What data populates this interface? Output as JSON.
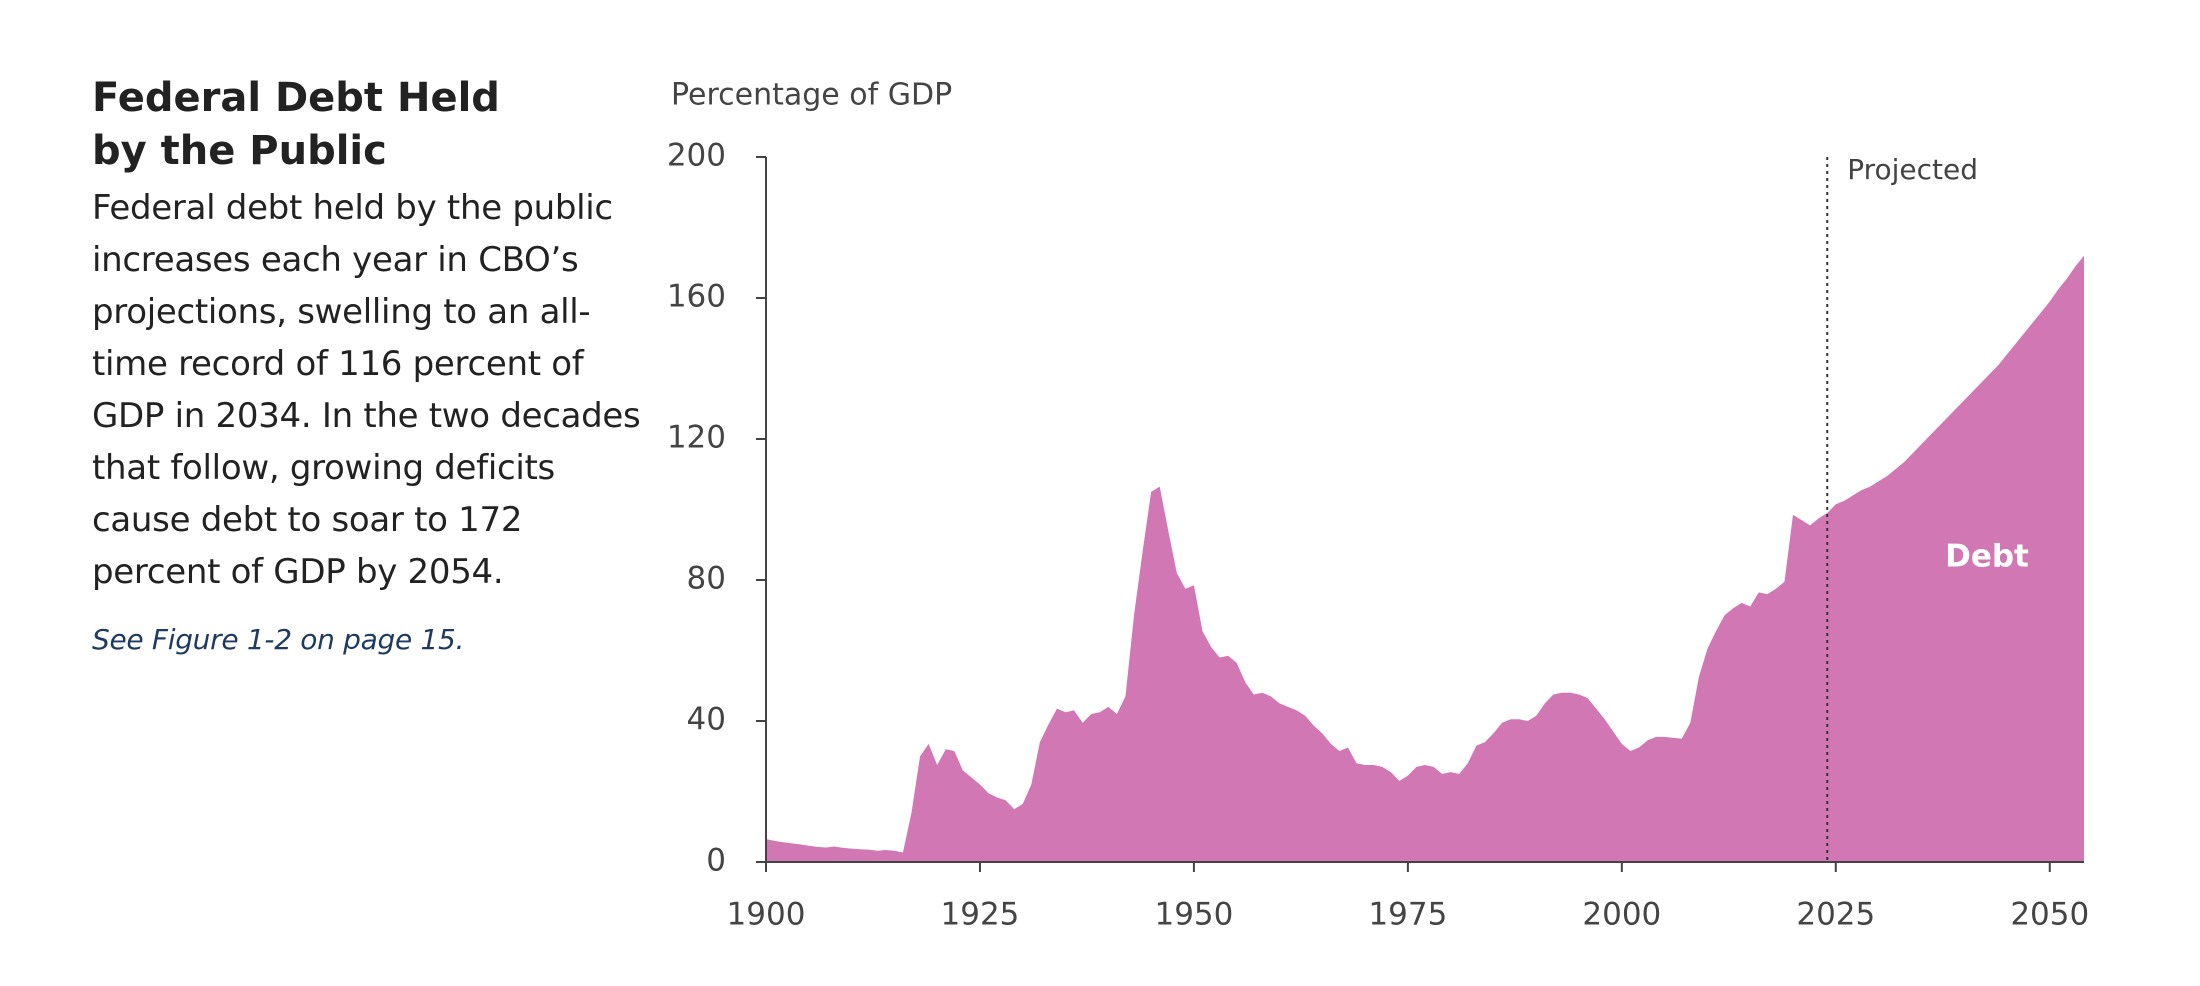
{
  "heading": {
    "title": "Federal Debt Held by the Public",
    "body": "Federal debt held by the public increases each year in CBO’s projections, swelling to an all-time record of 116 percent of GDP in 2034. In the two decades that follow, growing deficits cause debt to soar to 172 percent of GDP by 2054.",
    "link": "See Figure 1-2 on page 15."
  },
  "chart_data": {
    "type": "area",
    "y_label": "Percentage of GDP",
    "x": [
      1900,
      1901,
      1902,
      1903,
      1904,
      1905,
      1906,
      1907,
      1908,
      1909,
      1910,
      1911,
      1912,
      1913,
      1914,
      1915,
      1916,
      1917,
      1918,
      1919,
      1920,
      1921,
      1922,
      1923,
      1924,
      1925,
      1926,
      1927,
      1928,
      1929,
      1930,
      1931,
      1932,
      1933,
      1934,
      1935,
      1936,
      1937,
      1938,
      1939,
      1940,
      1941,
      1942,
      1943,
      1944,
      1945,
      1946,
      1947,
      1948,
      1949,
      1950,
      1951,
      1952,
      1953,
      1954,
      1955,
      1956,
      1957,
      1958,
      1959,
      1960,
      1961,
      1962,
      1963,
      1964,
      1965,
      1966,
      1967,
      1968,
      1969,
      1970,
      1971,
      1972,
      1973,
      1974,
      1975,
      1976,
      1977,
      1978,
      1979,
      1980,
      1981,
      1982,
      1983,
      1984,
      1985,
      1986,
      1987,
      1988,
      1989,
      1990,
      1991,
      1992,
      1993,
      1994,
      1995,
      1996,
      1997,
      1998,
      1999,
      2000,
      2001,
      2002,
      2003,
      2004,
      2005,
      2006,
      2007,
      2008,
      2009,
      2010,
      2011,
      2012,
      2013,
      2014,
      2015,
      2016,
      2017,
      2018,
      2019,
      2020,
      2021,
      2022,
      2023,
      2024,
      2025,
      2026,
      2027,
      2028,
      2029,
      2030,
      2031,
      2032,
      2033,
      2034,
      2035,
      2036,
      2037,
      2038,
      2039,
      2040,
      2041,
      2042,
      2043,
      2044,
      2045,
      2046,
      2047,
      2048,
      2049,
      2050,
      2051,
      2052,
      2053,
      2054
    ],
    "series": [
      {
        "name": "Debt",
        "color": "#d178b4",
        "values": [
          6.5,
          6,
          5.6,
          5.3,
          5,
          4.6,
          4.3,
          4.1,
          4.4,
          4,
          3.8,
          3.6,
          3.5,
          3.2,
          3.4,
          3.2,
          2.7,
          14,
          30,
          33.5,
          27.5,
          32,
          31.5,
          26,
          24,
          22,
          19.5,
          18.3,
          17.5,
          15,
          16.5,
          22,
          34,
          39,
          43.5,
          42.5,
          43,
          39.5,
          42,
          42.5,
          44,
          42,
          47,
          70,
          88,
          105,
          106.5,
          94,
          82,
          77.5,
          78.5,
          65.5,
          61,
          58,
          58.5,
          56.5,
          51,
          47.5,
          48,
          47,
          45,
          44,
          43,
          41.5,
          38.7,
          36.5,
          33.5,
          31.5,
          32.5,
          28,
          27.5,
          27.5,
          27,
          25.5,
          23,
          24.5,
          27,
          27.5,
          27,
          25,
          25.5,
          25,
          28,
          33,
          34,
          36.5,
          39.5,
          40.5,
          40.5,
          40,
          41.5,
          45,
          47.5,
          48,
          48,
          47.5,
          46.5,
          43.5,
          40.5,
          37,
          33.5,
          31.5,
          32.5,
          34.5,
          35.5,
          35.5,
          35.2,
          35,
          39.5,
          52.5,
          60.5,
          65.5,
          70,
          72,
          73.5,
          72.5,
          76.5,
          76,
          77.5,
          79.5,
          98.5,
          97,
          95.5,
          97.5,
          99,
          101.5,
          102.5,
          104,
          105.5,
          106.5,
          108,
          109.5,
          111.5,
          113.5,
          116,
          118.5,
          121,
          123.5,
          126,
          128.5,
          131,
          133.5,
          136,
          138.5,
          141,
          144,
          147,
          150,
          153,
          156,
          159,
          162.5,
          165.5,
          169,
          172
        ]
      }
    ],
    "xlim": [
      1900,
      2054
    ],
    "xticks": [
      1900,
      1925,
      1950,
      1975,
      2000,
      2025,
      2050
    ],
    "ylim": [
      0,
      200
    ],
    "yticks": [
      0,
      40,
      80,
      120,
      160,
      200
    ],
    "projection_start": 2024,
    "projection_label": "Projected"
  }
}
